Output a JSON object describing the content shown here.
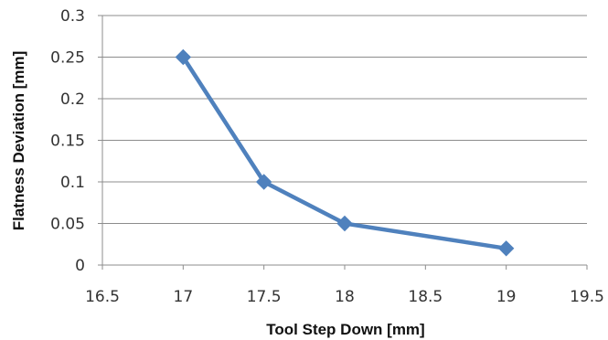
{
  "chart_data": {
    "type": "line",
    "title": "",
    "xlabel": "Tool Step Down [mm]",
    "ylabel": "Flatness Deviation [mm]",
    "xlim": [
      16.5,
      19.5
    ],
    "ylim": [
      0,
      0.3
    ],
    "x_ticks": [
      "16.5",
      "17",
      "17.5",
      "18",
      "18.5",
      "19",
      "19.5"
    ],
    "y_ticks": [
      "0",
      "0.05",
      "0.1",
      "0.15",
      "0.2",
      "0.25",
      "0.3"
    ],
    "grid": "horizontal",
    "legend": "none",
    "marker": "diamond",
    "series": [
      {
        "x": [
          17,
          17.5,
          18,
          19
        ],
        "values": [
          0.25,
          0.1,
          0.05,
          0.02
        ],
        "color": "#4F81BD"
      }
    ],
    "colors": {
      "line": "#4F81BD",
      "grid": "#8C8C8C",
      "axis": "#8C8C8C"
    }
  }
}
